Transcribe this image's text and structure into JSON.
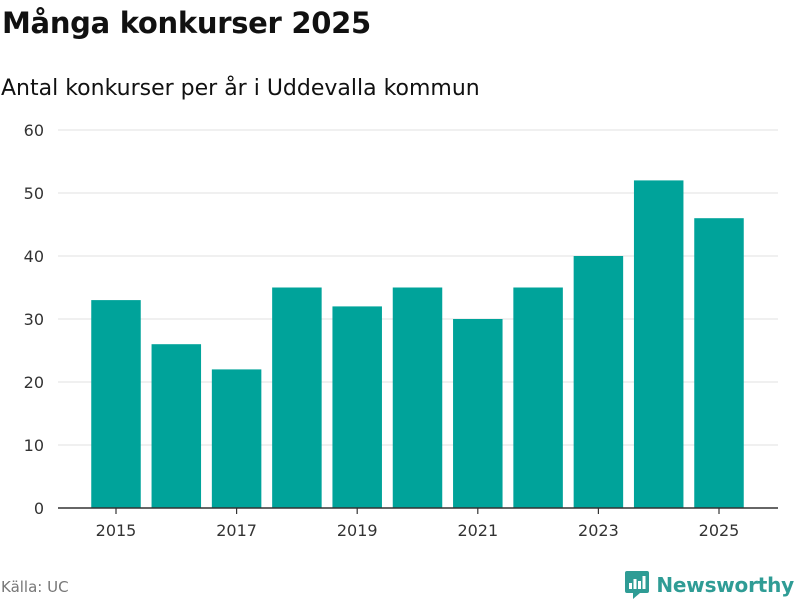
{
  "header": {
    "title": "Många konkurser 2025",
    "subtitle": "Antal konkurser per år i Uddevalla kommun"
  },
  "footer": {
    "source": "Källa: UC",
    "brand": "Newsworthy"
  },
  "colors": {
    "bar": "#00a39a",
    "grid": "#e0e0e0",
    "axis": "#333333",
    "brand": "#2f9c95"
  },
  "chart_data": {
    "type": "bar",
    "title": "Många konkurser 2025",
    "subtitle": "Antal konkurser per år i Uddevalla kommun",
    "xlabel": "",
    "ylabel": "",
    "categories": [
      "2015",
      "2016",
      "2017",
      "2018",
      "2019",
      "2020",
      "2021",
      "2022",
      "2023",
      "2024",
      "2025"
    ],
    "values": [
      33,
      26,
      22,
      35,
      32,
      35,
      30,
      35,
      40,
      52,
      46
    ],
    "x_tick_labels": [
      "2015",
      "2017",
      "2019",
      "2021",
      "2023",
      "2025"
    ],
    "y_ticks": [
      0,
      10,
      20,
      30,
      40,
      50,
      60
    ],
    "ylim": [
      0,
      60
    ],
    "grid": true,
    "legend": "none"
  }
}
